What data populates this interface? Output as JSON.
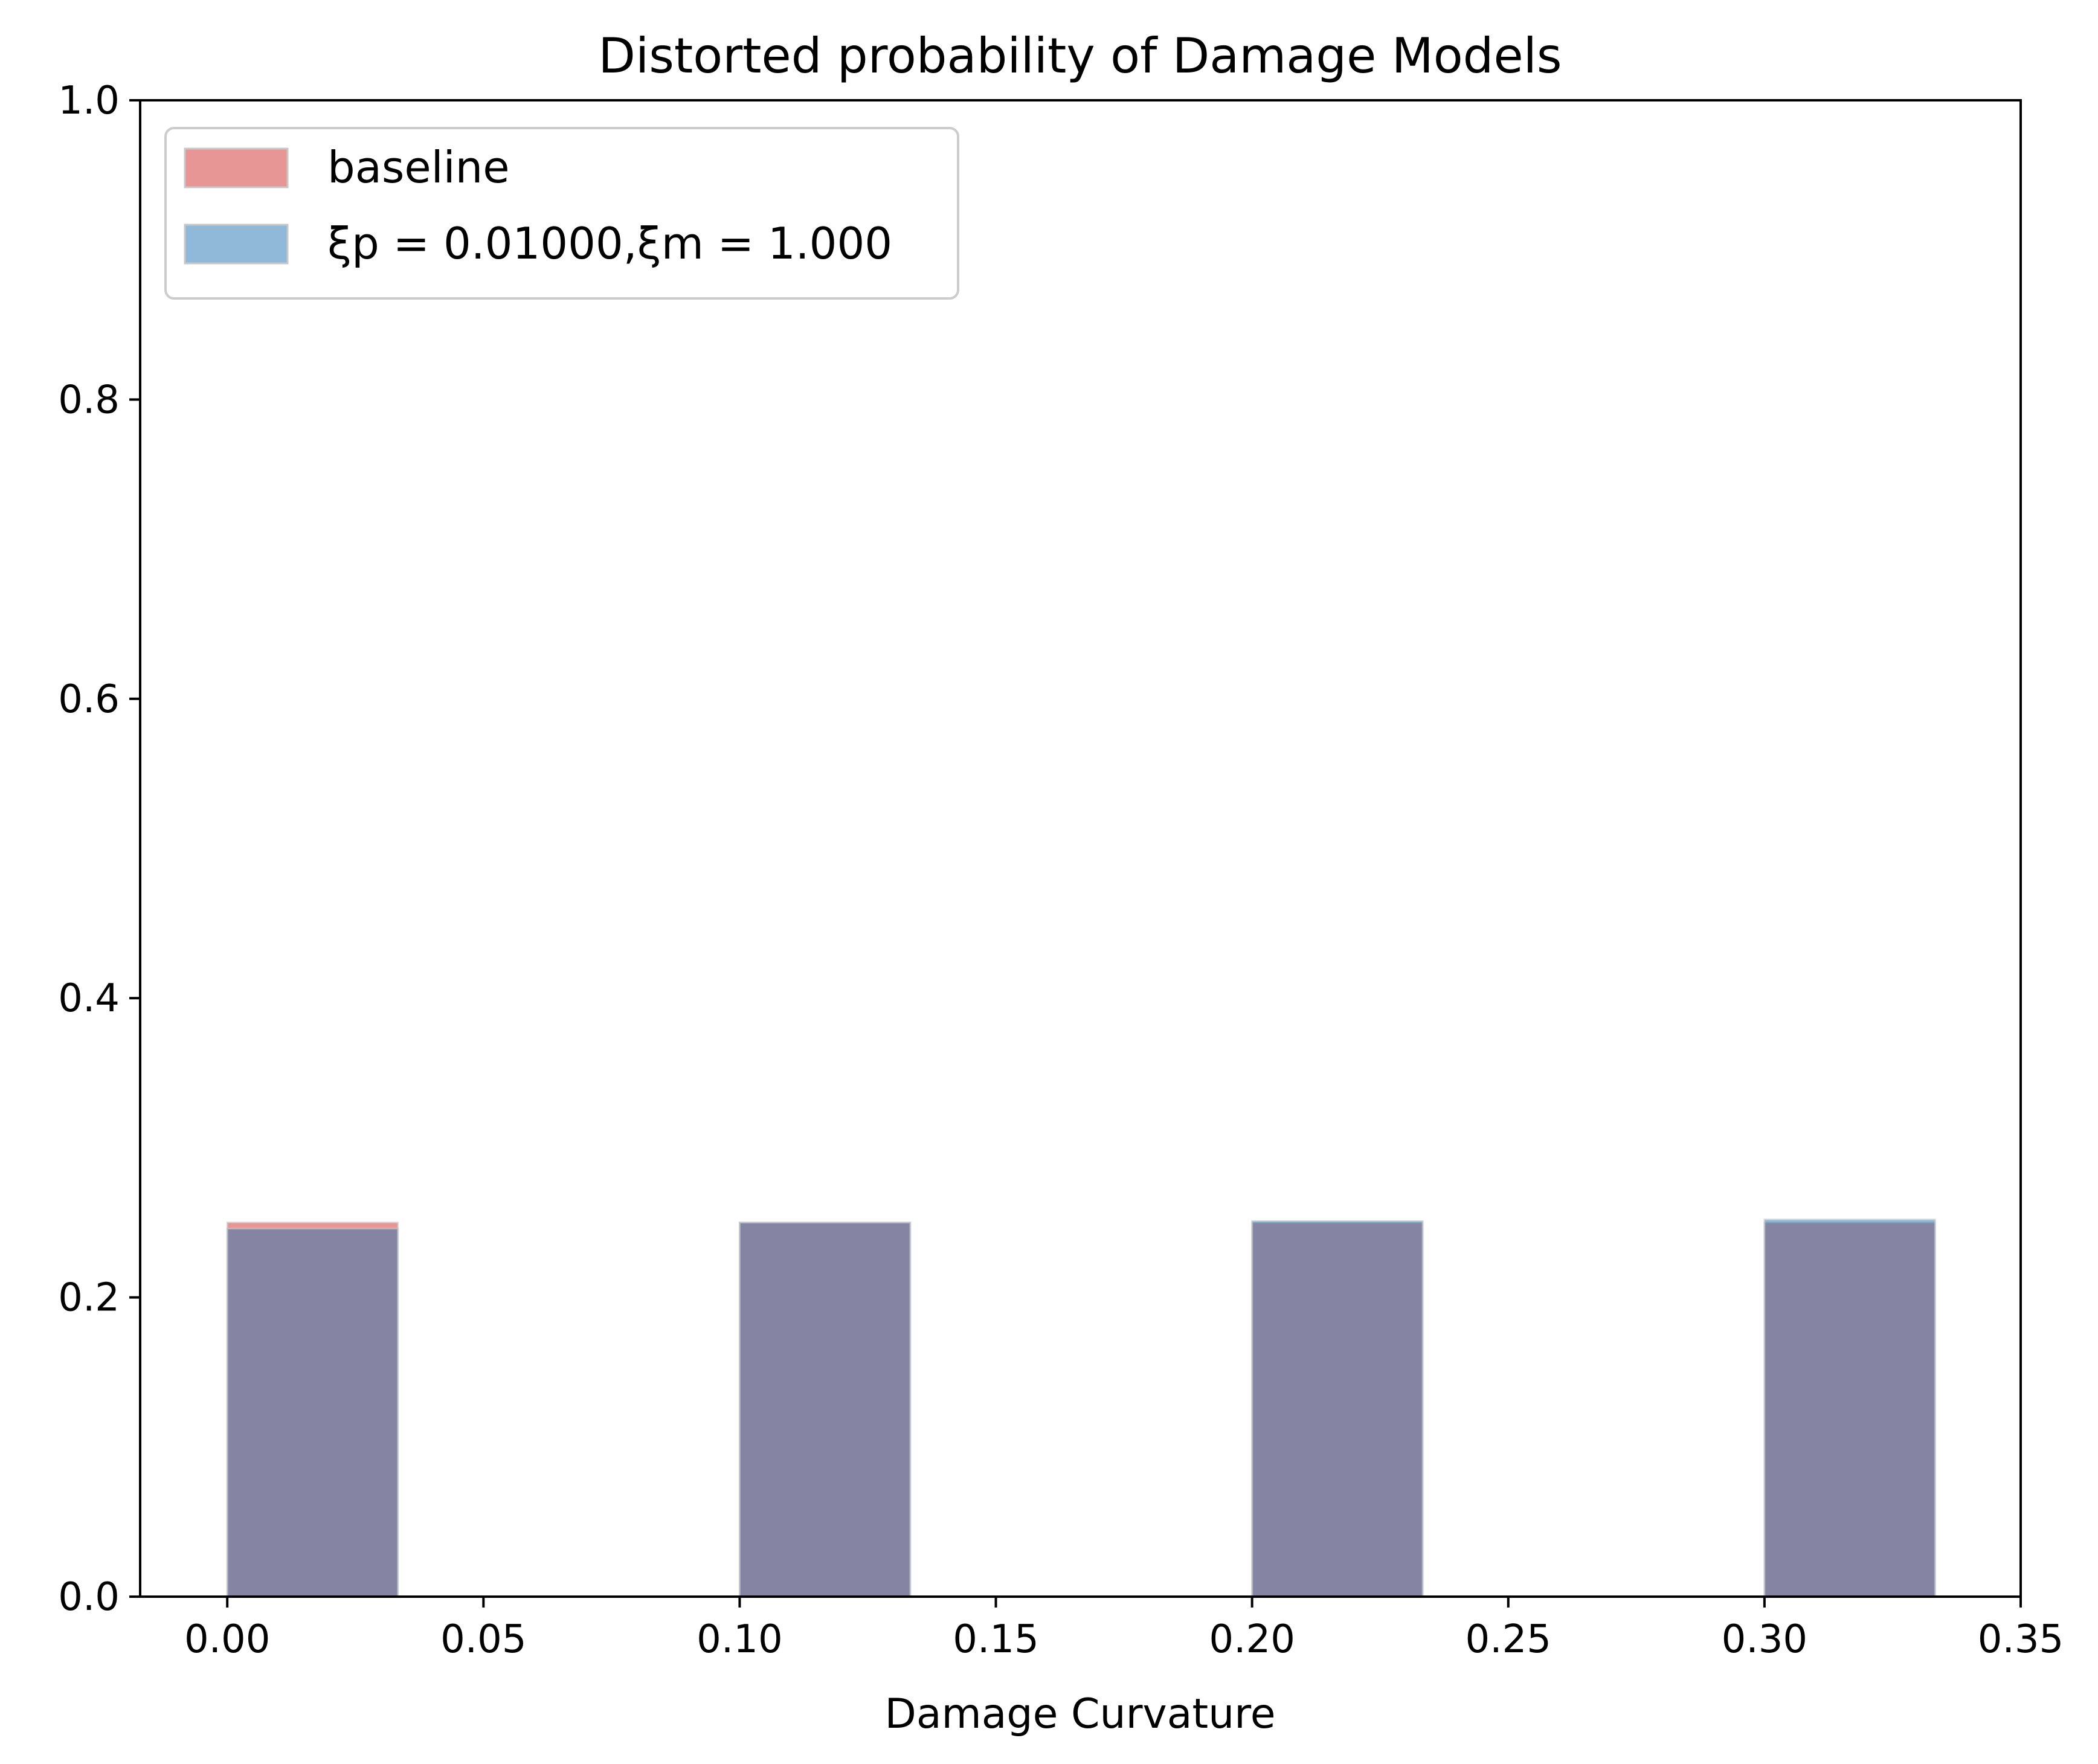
{
  "chart_data": {
    "type": "bar",
    "title": "Distorted probability of Damage Models",
    "xlabel": "Damage Curvature",
    "ylabel": "",
    "xlim": [
      -0.017,
      0.35
    ],
    "ylim": [
      0.0,
      1.0
    ],
    "x_ticks": [
      "0.00",
      "0.05",
      "0.10",
      "0.15",
      "0.20",
      "0.25",
      "0.30",
      "0.35"
    ],
    "y_ticks": [
      "0.0",
      "0.2",
      "0.4",
      "0.6",
      "0.8",
      "1.0"
    ],
    "bin_width": 0.0333,
    "x": [
      0.0,
      0.1,
      0.2,
      0.3
    ],
    "series": [
      {
        "name": "baseline",
        "values": [
          0.25,
          0.25,
          0.25,
          0.25
        ],
        "color": "#d62728",
        "alpha": 0.5
      },
      {
        "name": "ξp = 0.01000,ξm = 1.000",
        "values": [
          0.246,
          0.25,
          0.251,
          0.252
        ],
        "color": "#1f77b4",
        "alpha": 0.5
      }
    ],
    "grid": false,
    "legend_position": "top-left"
  },
  "colors": {
    "baseline_patch": "#e89595",
    "distorted_patch": "#8fb8d9",
    "overlap": "#8687a3"
  }
}
